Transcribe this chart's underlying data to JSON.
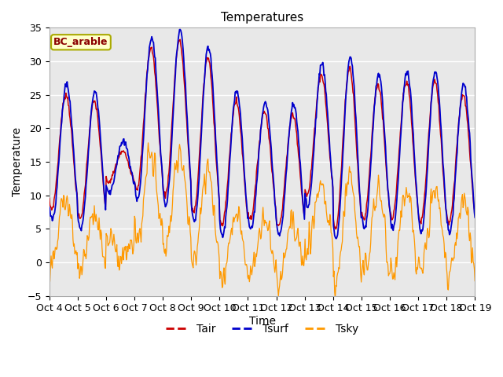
{
  "title": "Temperatures",
  "xlabel": "Time",
  "ylabel": "Temperature",
  "annotation": "BC_arable",
  "ylim": [
    -5,
    35
  ],
  "bg_color": "#e8e8e8",
  "plot_bg": "#e8e8e8",
  "tair_color": "#cc0000",
  "tsurf_color": "#0000cc",
  "tsky_color": "#ff9900",
  "legend_labels": [
    "Tair",
    "Tsurf",
    "Tsky"
  ],
  "xtick_labels": [
    "Oct 4",
    "Oct 5",
    "Oct 6",
    "Oct 7",
    "Oct 8",
    "Oct 9",
    "Oct 10",
    "Oct 11",
    "Oct 12",
    "Oct 13",
    "Oct 14",
    "Oct 15",
    "Oct 16",
    "Oct 17",
    "Oct 18",
    "Oct 19"
  ],
  "yticks": [
    -5,
    0,
    5,
    10,
    15,
    20,
    25,
    30,
    35
  ],
  "n_days": 15,
  "pts_per_day": 48
}
